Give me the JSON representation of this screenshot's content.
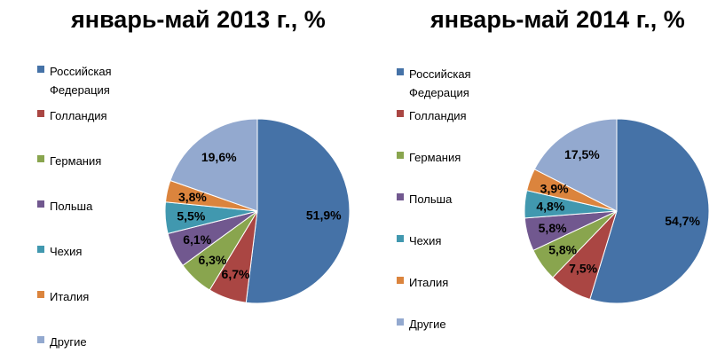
{
  "chart_data": [
    {
      "type": "pie",
      "title": "январь-май 2013 г., %",
      "categories": [
        "Российская Федерация",
        "Голландия",
        "Германия",
        "Польша",
        "Чехия",
        "Италия",
        "Другие"
      ],
      "values": [
        51.9,
        6.7,
        6.3,
        6.1,
        5.5,
        3.8,
        19.6
      ],
      "data_labels": [
        "51,9%",
        "6,7%",
        "6,3%",
        "6,1%",
        "5,5%",
        "3,8%",
        "19,6%"
      ],
      "colors": [
        "#4572A7",
        "#AA4643",
        "#89A54E",
        "#71588F",
        "#4198AF",
        "#DB843D",
        "#93A9CF"
      ],
      "legend_position": "left"
    },
    {
      "type": "pie",
      "title": "январь-май 2014 г., %",
      "categories": [
        "Российская Федерация",
        "Голландия",
        "Германия",
        "Польша",
        "Чехия",
        "Италия",
        "Другие"
      ],
      "values": [
        54.7,
        7.5,
        5.8,
        5.8,
        4.8,
        3.9,
        17.5
      ],
      "data_labels": [
        "54,7%",
        "7,5%",
        "5,8%",
        "5,8%",
        "4,8%",
        "3,9%",
        "17,5%"
      ],
      "colors": [
        "#4572A7",
        "#AA4643",
        "#89A54E",
        "#71588F",
        "#4198AF",
        "#DB843D",
        "#93A9CF"
      ],
      "legend_position": "left"
    }
  ]
}
